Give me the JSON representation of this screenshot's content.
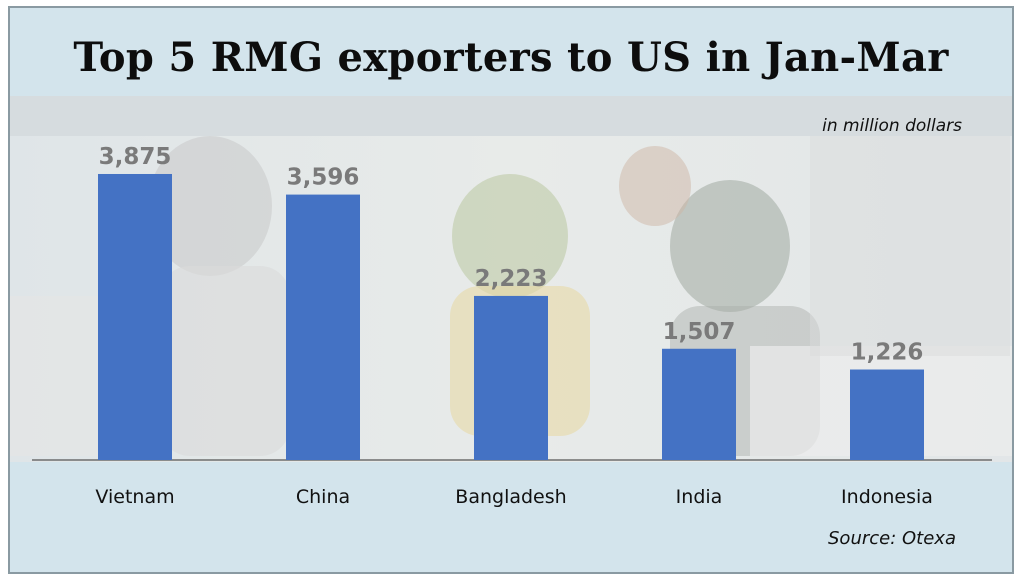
{
  "title": "Top 5 RMG exporters to US in Jan-Mar",
  "unit_note": "in million dollars",
  "source": "Source: Otexa",
  "colors": {
    "bar": "#4472c4",
    "frame_bg": "#d3e4ec",
    "value_label": "#7a7a7a"
  },
  "chart_data": {
    "type": "bar",
    "title": "Top 5 RMG exporters to US in Jan-Mar",
    "categories": [
      "Vietnam",
      "China",
      "Bangladesh",
      "India",
      "Indonesia"
    ],
    "values": [
      3875,
      3596,
      2223,
      1507,
      1226
    ],
    "value_labels": [
      "3,875",
      "3,596",
      "2,223",
      "1,507",
      "1,226"
    ],
    "unit": "in million dollars",
    "ylim": [
      0,
      4200
    ],
    "grid": false,
    "legend": "none"
  }
}
